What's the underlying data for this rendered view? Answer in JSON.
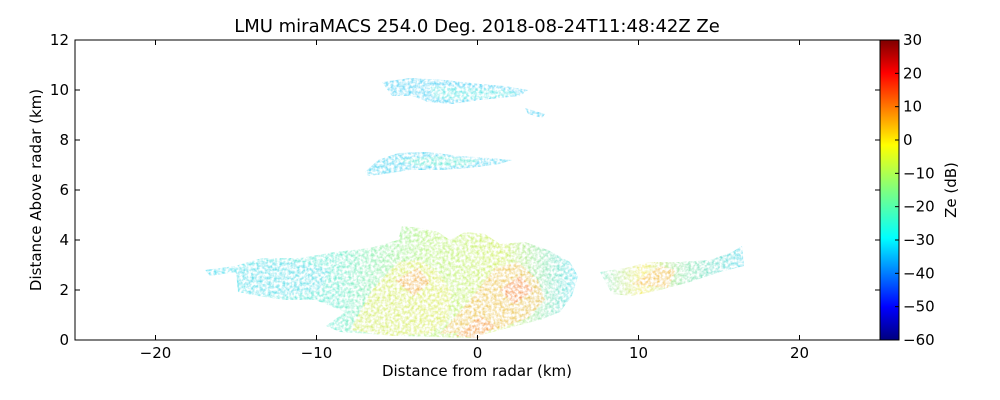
{
  "chart_data": {
    "type": "heatmap",
    "title": "LMU miraMACS 254.0 Deg. 2018-08-24T11:48:42Z  Ze",
    "xlabel": "Distance from radar (km)",
    "ylabel": "Distance Above radar  (km)",
    "xlim": [
      -25,
      25
    ],
    "ylim": [
      0,
      12
    ],
    "x_ticks": [
      -20,
      -10,
      0,
      10,
      20
    ],
    "x_tick_labels": [
      "−20",
      "−10",
      "0",
      "10",
      "20"
    ],
    "y_ticks": [
      0,
      2,
      4,
      6,
      8,
      10,
      12
    ],
    "y_tick_labels": [
      "0",
      "2",
      "4",
      "6",
      "8",
      "10",
      "12"
    ],
    "colorbar": {
      "label": "Ze (dB)",
      "range": [
        -60,
        30
      ],
      "ticks": [
        30,
        20,
        10,
        0,
        -10,
        -20,
        -30,
        -40,
        -50,
        -60
      ],
      "tick_labels": [
        "30",
        "20",
        "10",
        "0",
        "−10",
        "−20",
        "−30",
        "−40",
        "−50",
        "−60"
      ],
      "colormap": [
        "#00007f",
        "#0000ff",
        "#007fff",
        "#00ffff",
        "#7fff7f",
        "#ffff00",
        "#ff7f00",
        "#ff0000",
        "#7f0000"
      ]
    },
    "echo_regions": [
      {
        "name": "upper cloud layer",
        "x_range": [
          -5.8,
          4.2
        ],
        "y_range": [
          9.0,
          10.4
        ],
        "ze_typical": -28
      },
      {
        "name": "mid cloud layer",
        "x_range": [
          -7.0,
          2.2
        ],
        "y_range": [
          6.6,
          7.5
        ],
        "ze_typical": -27
      },
      {
        "name": "main precipitation",
        "x_range": [
          -17.0,
          6.2
        ],
        "y_range": [
          0.0,
          4.6
        ],
        "ze_typical": -15,
        "ze_max": 15
      },
      {
        "name": "right precipitation band",
        "x_range": [
          9.5,
          17.5
        ],
        "y_range": [
          1.8,
          3.7
        ],
        "ze_typical": -15,
        "ze_max": 12
      }
    ]
  }
}
